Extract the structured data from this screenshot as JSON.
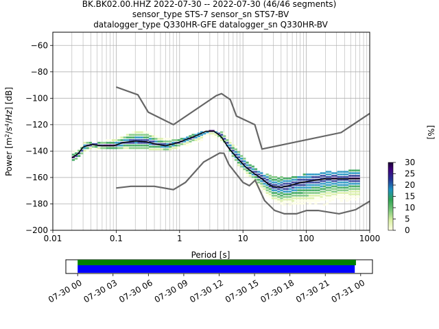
{
  "chart_data": {
    "type": "heatmap",
    "title": {
      "line1": "BK.BK02.00.HHZ   2022-07-30 -- 2022-07-30  (46/46 segments)",
      "line2": "sensor_type STS-7 sensor_sn STS7-BV",
      "line3": "datalogger_type Q330HR-GFE datalogger_sn Q330HR-BV"
    },
    "xlabel": "Period [s]",
    "ylabel": "Power [m2/s4/Hz] [dB]",
    "xscale": "log",
    "xlim": [
      0.01,
      1000
    ],
    "ylim": [
      -200,
      -50
    ],
    "x_ticks": [
      {
        "value": 0.01,
        "label": "0.01"
      },
      {
        "value": 0.1,
        "label": "0.1"
      },
      {
        "value": 1,
        "label": "1"
      },
      {
        "value": 10,
        "label": "10"
      },
      {
        "value": 100,
        "label": "100"
      },
      {
        "value": 1000,
        "label": "1000"
      }
    ],
    "y_ticks": [
      {
        "value": -60,
        "label": "−60"
      },
      {
        "value": -80,
        "label": "−80"
      },
      {
        "value": -100,
        "label": "−100"
      },
      {
        "value": -120,
        "label": "−120"
      },
      {
        "value": -140,
        "label": "−140"
      },
      {
        "value": -160,
        "label": "−160"
      },
      {
        "value": -180,
        "label": "−180"
      },
      {
        "value": -200,
        "label": "−200"
      }
    ],
    "grid": true,
    "colorbar": {
      "label": "[%]",
      "range": [
        0,
        30
      ],
      "ticks": [
        {
          "value": 0,
          "label": "0"
        },
        {
          "value": 5,
          "label": "5"
        },
        {
          "value": 10,
          "label": "10"
        },
        {
          "value": 15,
          "label": "15"
        },
        {
          "value": 20,
          "label": "20"
        },
        {
          "value": 25,
          "label": "25"
        },
        {
          "value": 30,
          "label": "30"
        }
      ],
      "colors": [
        "#ffffe5",
        "#d9f0a3",
        "#78c679",
        "#31a354",
        "#1d91c0",
        "#253494",
        "#3f007d",
        "#1a0033"
      ]
    },
    "noise_models": [
      {
        "name": "high-noise-model",
        "points": [
          [
            0.1,
            -91.5
          ],
          [
            0.22,
            -97.4
          ],
          [
            0.32,
            -110.5
          ],
          [
            0.8,
            -120
          ],
          [
            3.8,
            -98
          ],
          [
            4.6,
            -96.5
          ],
          [
            6.3,
            -101
          ],
          [
            7.9,
            -113.5
          ],
          [
            15.4,
            -120
          ],
          [
            20,
            -138.5
          ],
          [
            354,
            -126
          ],
          [
            1000,
            -111.5
          ]
        ]
      },
      {
        "name": "low-noise-model",
        "points": [
          [
            0.1,
            -168
          ],
          [
            0.17,
            -166.7
          ],
          [
            0.4,
            -166.7
          ],
          [
            0.8,
            -169.2
          ],
          [
            1.24,
            -163.7
          ],
          [
            2.4,
            -148.3
          ],
          [
            4.3,
            -141.5
          ],
          [
            5,
            -141.7
          ],
          [
            6,
            -150.2
          ],
          [
            10,
            -163.7
          ],
          [
            12.6,
            -166.2
          ],
          [
            15.6,
            -162.1
          ],
          [
            21.9,
            -177.5
          ],
          [
            31.6,
            -185
          ],
          [
            45,
            -187.5
          ],
          [
            70,
            -187.5
          ],
          [
            101,
            -185
          ],
          [
            154,
            -185
          ],
          [
            328,
            -187.5
          ],
          [
            600,
            -184.4
          ],
          [
            1000,
            -178
          ]
        ]
      }
    ],
    "mode_curve": {
      "name": "mode",
      "points": [
        [
          0.02,
          -145
        ],
        [
          0.025,
          -142
        ],
        [
          0.03,
          -137
        ],
        [
          0.04,
          -135
        ],
        [
          0.06,
          -136
        ],
        [
          0.09,
          -136
        ],
        [
          0.13,
          -133.5
        ],
        [
          0.2,
          -132.5
        ],
        [
          0.3,
          -133
        ],
        [
          0.45,
          -135
        ],
        [
          0.6,
          -136
        ],
        [
          0.9,
          -134
        ],
        [
          1.3,
          -131
        ],
        [
          1.9,
          -128
        ],
        [
          2.6,
          -125
        ],
        [
          3.5,
          -125
        ],
        [
          4.5,
          -129
        ],
        [
          6,
          -138
        ],
        [
          8,
          -145
        ],
        [
          11,
          -152
        ],
        [
          15,
          -157
        ],
        [
          20,
          -161
        ],
        [
          25,
          -165
        ],
        [
          30,
          -167
        ],
        [
          40,
          -167.5
        ],
        [
          55,
          -166
        ],
        [
          80,
          -164
        ],
        [
          120,
          -162.5
        ],
        [
          200,
          -161
        ],
        [
          400,
          -161
        ],
        [
          700,
          -161
        ]
      ]
    },
    "distribution_bands": [
      {
        "x": [
          0.02,
          0.03,
          0.05,
          0.1,
          0.2,
          0.3,
          0.5,
          1,
          2,
          3,
          5,
          8,
          12,
          20,
          40,
          80,
          150,
          300,
          700
        ],
        "lower": [
          -147,
          -140,
          -138,
          -138,
          -138,
          -138,
          -139,
          -137,
          -132,
          -128,
          -133,
          -150,
          -160,
          -172,
          -180,
          -182,
          -181,
          -178,
          -176
        ],
        "upper": [
          -141,
          -134,
          -133,
          -130,
          -125,
          -126,
          -131,
          -131,
          -126,
          -124,
          -126,
          -139,
          -150,
          -157,
          -160,
          -158,
          -156,
          -155,
          -154
        ]
      }
    ],
    "timeline": {
      "tick_labels": [
        "07-30 00",
        "07-30 03",
        "07-30 06",
        "07-30 09",
        "07-30 12",
        "07-30 15",
        "07-30 18",
        "07-30 21",
        "07-31 00"
      ],
      "range_hours": [
        -1,
        25
      ],
      "coverage": [
        {
          "name": "data",
          "color": "#008000",
          "start_hours": 0,
          "end_hours": 23.6
        },
        {
          "name": "psd-segments",
          "color": "#0000ff",
          "start_hours": 0,
          "end_hours": 23.5
        }
      ]
    }
  }
}
